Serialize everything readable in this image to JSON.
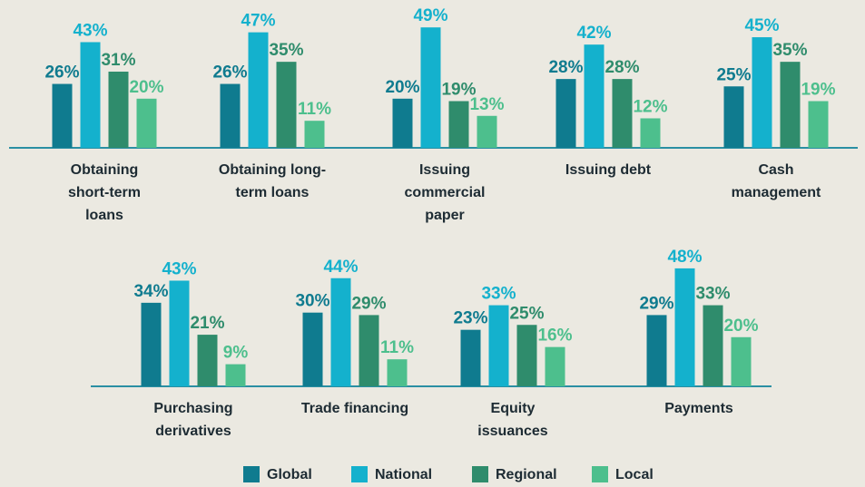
{
  "chart_data": {
    "type": "bar",
    "categories": [
      "Obtaining short-term loans",
      "Obtaining long-term loans",
      "Issuing commercial paper",
      "Issuing debt",
      "Cash management",
      "Purchasing derivatives",
      "Trade financing",
      "Equity issuances",
      "Payments"
    ],
    "series": [
      {
        "name": "Global",
        "color": "#0f7b8f",
        "values": [
          26,
          26,
          20,
          28,
          25,
          34,
          30,
          23,
          29
        ],
        "value_labels": [
          "26%",
          "26%",
          "20%",
          "28%",
          "25%",
          "34%",
          "30%",
          "23%",
          "29%"
        ]
      },
      {
        "name": "National",
        "color": "#14b1cd",
        "values": [
          43,
          47,
          49,
          42,
          45,
          43,
          44,
          33,
          48
        ],
        "value_labels": [
          "43%",
          "47%",
          "49%",
          "42%",
          "45%",
          "43%",
          "44%",
          "33%",
          "48%"
        ]
      },
      {
        "name": "Regional",
        "color": "#2f8c6c",
        "values": [
          31,
          35,
          19,
          28,
          35,
          21,
          29,
          25,
          33
        ],
        "value_labels": [
          "31%",
          "35%",
          "19%",
          "28%",
          "35%",
          "21%",
          "29%",
          "25%",
          "33%"
        ]
      },
      {
        "name": "Local",
        "color": "#4dbf8d",
        "values": [
          20,
          11,
          13,
          12,
          19,
          9,
          11,
          16,
          20
        ],
        "value_labels": [
          "20%",
          "11%",
          "13%",
          "12%",
          "19%",
          "9%",
          "11%",
          "16%",
          "20%"
        ]
      }
    ],
    "legend": "bottom"
  }
}
